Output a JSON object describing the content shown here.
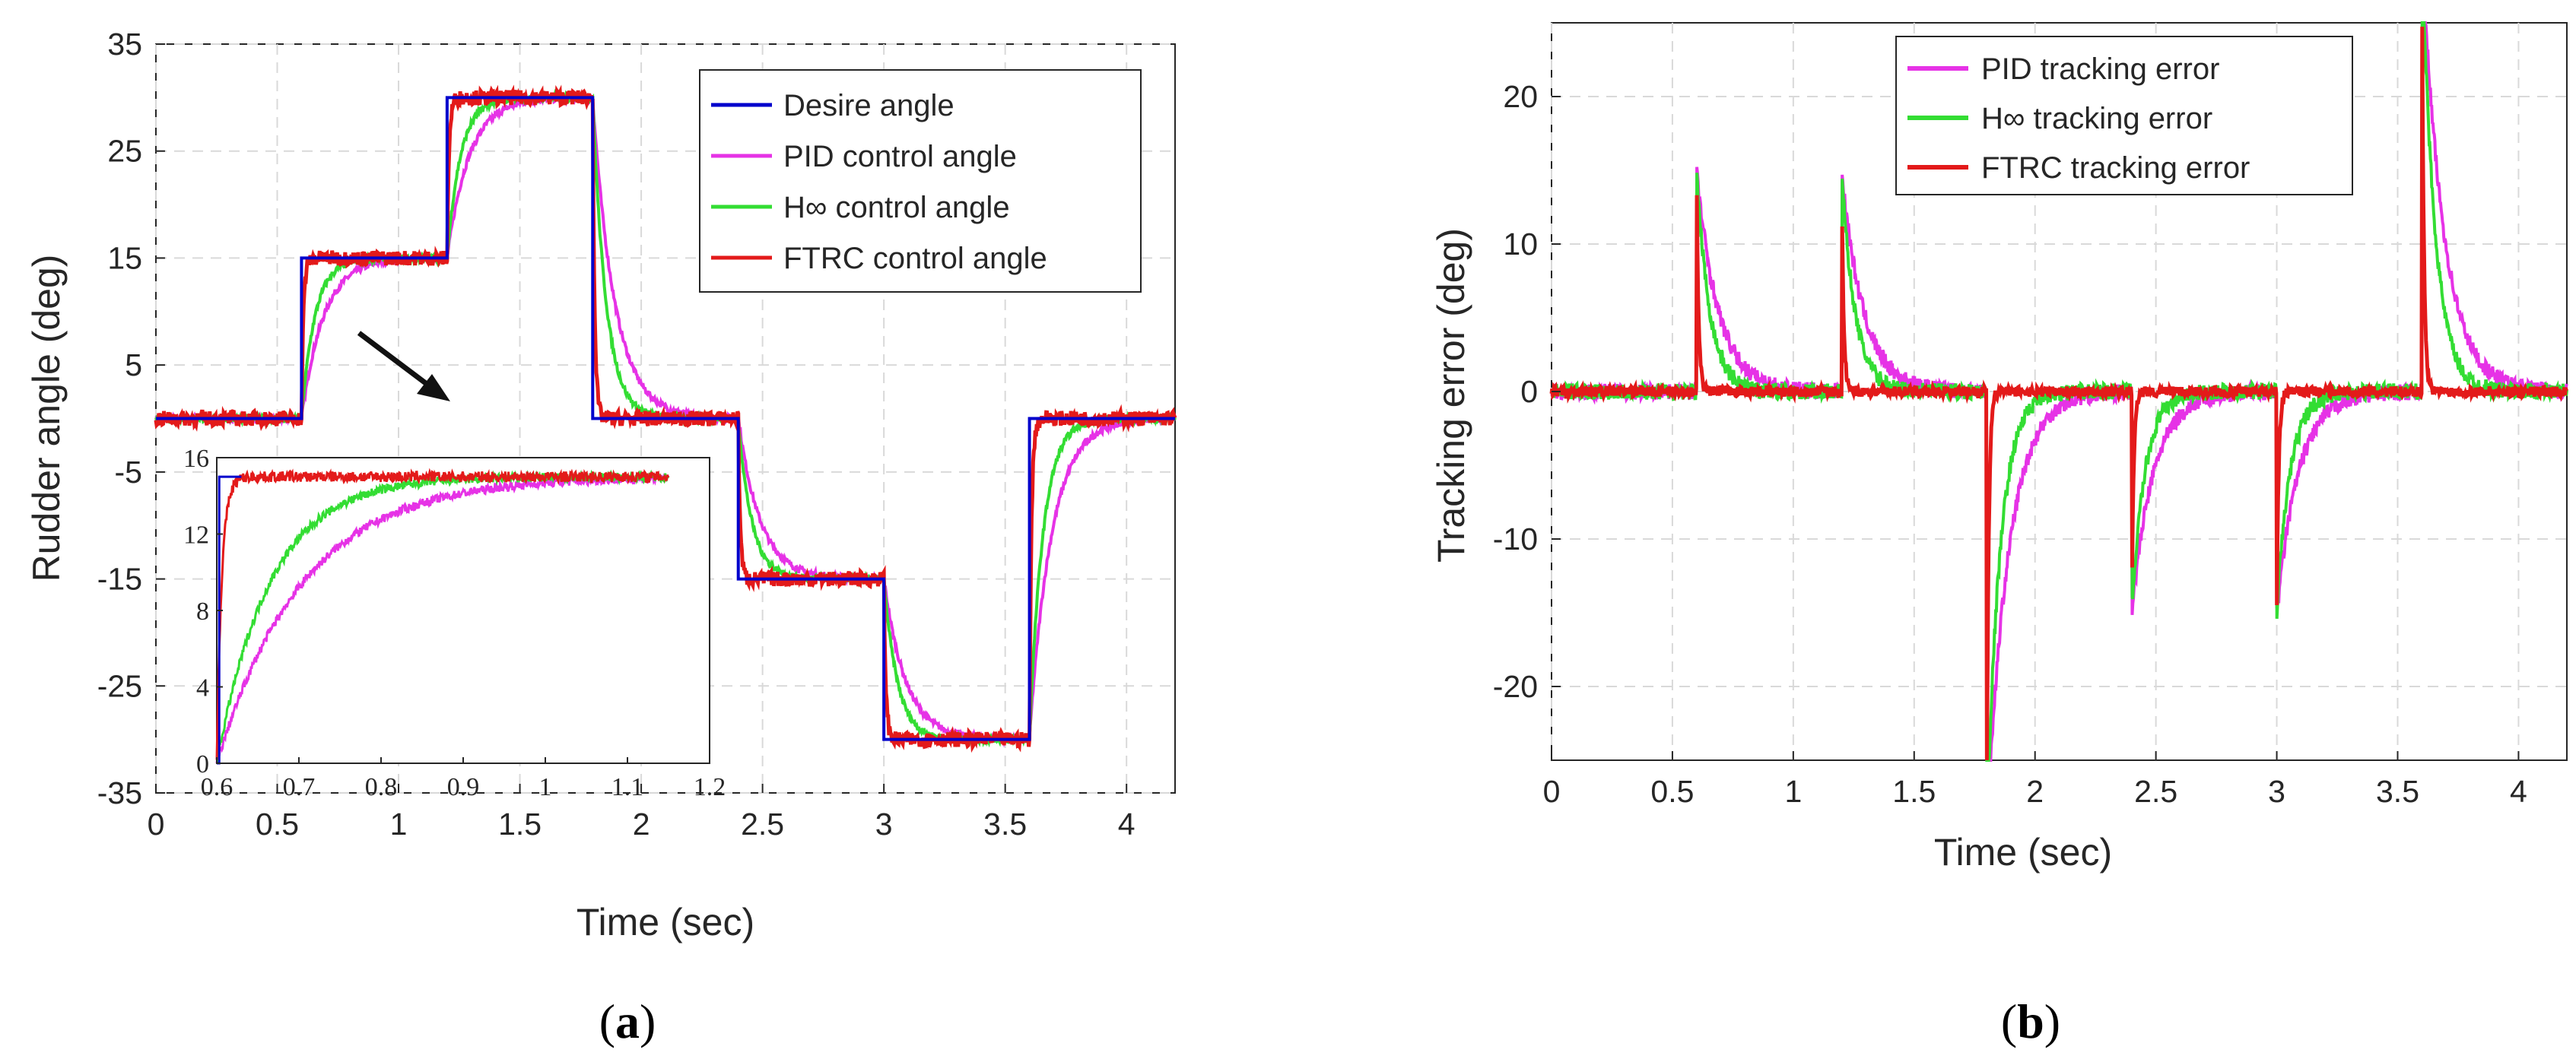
{
  "chart_data": [
    {
      "type": "line",
      "panel": "a",
      "caption": {
        "open": "(",
        "letter": "a",
        "close": ")"
      },
      "xlabel": "Time (sec)",
      "ylabel": "Rudder angle (deg)",
      "xlim": [
        0,
        4.2
      ],
      "ylim": [
        -35,
        35
      ],
      "xticks": [
        0,
        0.5,
        1,
        1.5,
        2,
        2.5,
        3,
        3.5,
        4
      ],
      "yticks": [
        35,
        25,
        15,
        5,
        -5,
        -15,
        -25,
        -35
      ],
      "grid": true,
      "legend_position": "top-right",
      "setpoints": {
        "t": [
          0,
          0.6,
          1.2,
          1.8,
          2.4,
          3.0,
          3.6,
          4.2
        ],
        "v": [
          0,
          15,
          30,
          0,
          -15,
          -30,
          0,
          0
        ]
      },
      "series": [
        {
          "name": "Desire angle",
          "color": "#0000cc",
          "tau": 0
        },
        {
          "name": "PID control angle",
          "color": "#e632e6",
          "tau": 0.09
        },
        {
          "name": "H∞ control angle",
          "color": "#33dd33",
          "tau": 0.055
        },
        {
          "name": "FTRC control angle",
          "color": "#e31a1a",
          "tau": 0.008
        }
      ],
      "inset": {
        "xlim": [
          0.6,
          1.2
        ],
        "ylim": [
          0,
          16
        ],
        "xticks": [
          "0.6",
          "0.7",
          "0.8",
          "0.9",
          "1",
          "1.1",
          "1.2"
        ],
        "yticks": [
          "16",
          "12",
          "8",
          "4",
          "0"
        ],
        "step_to": 15
      }
    },
    {
      "type": "line",
      "panel": "b",
      "caption": {
        "open": "(",
        "letter": "b",
        "close": ")"
      },
      "xlabel": "Time (sec)",
      "ylabel": "Tracking error (deg)",
      "xlim": [
        0,
        4.2
      ],
      "ylim": [
        -25,
        25
      ],
      "xticks": [
        0,
        0.5,
        1,
        1.5,
        2,
        2.5,
        3,
        3.5,
        4
      ],
      "yticks": [
        20,
        10,
        0,
        -10,
        -20
      ],
      "grid": true,
      "legend_position": "top-center",
      "series": [
        {
          "name": "PID tracking error",
          "color": "#e632e6",
          "tau": 0.09
        },
        {
          "name": "H∞ tracking error",
          "color": "#33dd33",
          "tau": 0.055
        },
        {
          "name": "FTRC tracking error",
          "color": "#e31a1a",
          "tau": 0.008
        }
      ]
    }
  ]
}
